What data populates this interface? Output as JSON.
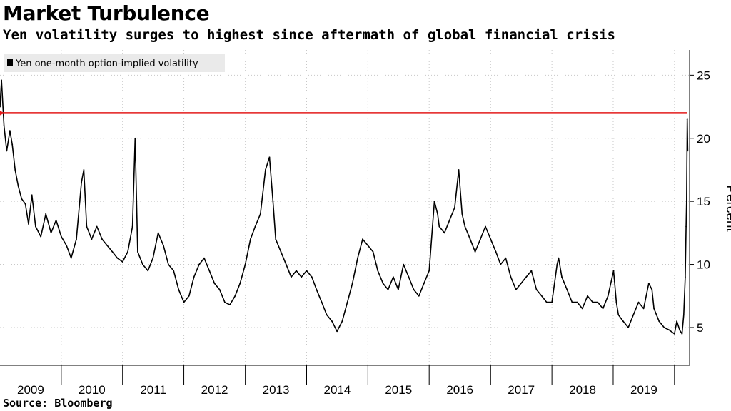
{
  "header": {
    "title": "Market Turbulence",
    "subtitle": "Yen volatility surges to highest since aftermath of global financial crisis"
  },
  "footer": {
    "source": "Source: Bloomberg"
  },
  "chart_data": {
    "type": "line",
    "title": "Market Turbulence",
    "subtitle": "Yen volatility surges to highest since aftermath of global financial crisis",
    "ylabel": "Percent",
    "xlabel": "",
    "ylim": [
      2,
      27
    ],
    "yticks": [
      5,
      10,
      15,
      20,
      25
    ],
    "x_categories": [
      "2009",
      "2010",
      "2011",
      "2012",
      "2013",
      "2014",
      "2015",
      "2016",
      "2017",
      "2018",
      "2019"
    ],
    "xlim": [
      "2009-01-01",
      "2020-03-31"
    ],
    "grid": true,
    "legend_position": "top-left",
    "series": [
      {
        "name": "Yen one-month option-implied volatility",
        "color": "#000000",
        "points": [
          [
            "2009-01-01",
            22.5
          ],
          [
            "2009-01-10",
            24.6
          ],
          [
            "2009-01-25",
            21.0
          ],
          [
            "2009-02-10",
            19.0
          ],
          [
            "2009-03-01",
            20.6
          ],
          [
            "2009-03-15",
            19.5
          ],
          [
            "2009-04-01",
            17.5
          ],
          [
            "2009-04-20",
            16.2
          ],
          [
            "2009-05-10",
            15.2
          ],
          [
            "2009-06-01",
            14.8
          ],
          [
            "2009-06-20",
            13.2
          ],
          [
            "2009-07-10",
            15.5
          ],
          [
            "2009-08-01",
            13.0
          ],
          [
            "2009-09-01",
            12.2
          ],
          [
            "2009-10-01",
            14.0
          ],
          [
            "2009-11-01",
            12.5
          ],
          [
            "2009-12-01",
            13.5
          ],
          [
            "2010-01-01",
            12.2
          ],
          [
            "2010-02-01",
            11.5
          ],
          [
            "2010-03-01",
            10.5
          ],
          [
            "2010-04-01",
            12.0
          ],
          [
            "2010-05-01",
            16.5
          ],
          [
            "2010-05-15",
            17.5
          ],
          [
            "2010-06-01",
            13.0
          ],
          [
            "2010-07-01",
            12.0
          ],
          [
            "2010-08-01",
            13.0
          ],
          [
            "2010-09-01",
            12.0
          ],
          [
            "2010-10-01",
            11.5
          ],
          [
            "2010-11-01",
            11.0
          ],
          [
            "2010-12-01",
            10.5
          ],
          [
            "2011-01-01",
            10.2
          ],
          [
            "2011-02-01",
            11.0
          ],
          [
            "2011-03-01",
            13.0
          ],
          [
            "2011-03-17",
            20.0
          ],
          [
            "2011-04-01",
            11.0
          ],
          [
            "2011-05-01",
            10.0
          ],
          [
            "2011-06-01",
            9.5
          ],
          [
            "2011-07-01",
            10.5
          ],
          [
            "2011-08-01",
            12.5
          ],
          [
            "2011-09-01",
            11.5
          ],
          [
            "2011-10-01",
            10.0
          ],
          [
            "2011-11-01",
            9.5
          ],
          [
            "2011-12-01",
            8.0
          ],
          [
            "2012-01-01",
            7.0
          ],
          [
            "2012-02-01",
            7.5
          ],
          [
            "2012-03-01",
            9.0
          ],
          [
            "2012-04-01",
            10.0
          ],
          [
            "2012-05-01",
            10.5
          ],
          [
            "2012-06-01",
            9.5
          ],
          [
            "2012-07-01",
            8.5
          ],
          [
            "2012-08-01",
            8.0
          ],
          [
            "2012-09-01",
            7.0
          ],
          [
            "2012-10-01",
            6.8
          ],
          [
            "2012-11-01",
            7.5
          ],
          [
            "2012-12-01",
            8.5
          ],
          [
            "2013-01-01",
            10.0
          ],
          [
            "2013-02-01",
            12.0
          ],
          [
            "2013-03-01",
            13.0
          ],
          [
            "2013-04-01",
            14.0
          ],
          [
            "2013-05-01",
            17.5
          ],
          [
            "2013-05-25",
            18.5
          ],
          [
            "2013-06-15",
            15.0
          ],
          [
            "2013-07-01",
            12.0
          ],
          [
            "2013-08-01",
            11.0
          ],
          [
            "2013-09-01",
            10.0
          ],
          [
            "2013-10-01",
            9.0
          ],
          [
            "2013-11-01",
            9.5
          ],
          [
            "2013-12-01",
            9.0
          ],
          [
            "2014-01-01",
            9.5
          ],
          [
            "2014-02-01",
            9.0
          ],
          [
            "2014-03-01",
            8.0
          ],
          [
            "2014-04-01",
            7.0
          ],
          [
            "2014-05-01",
            6.0
          ],
          [
            "2014-06-01",
            5.5
          ],
          [
            "2014-07-01",
            4.7
          ],
          [
            "2014-08-01",
            5.5
          ],
          [
            "2014-09-01",
            7.0
          ],
          [
            "2014-10-01",
            8.5
          ],
          [
            "2014-11-01",
            10.5
          ],
          [
            "2014-12-01",
            12.0
          ],
          [
            "2015-01-01",
            11.5
          ],
          [
            "2015-02-01",
            11.0
          ],
          [
            "2015-03-01",
            9.5
          ],
          [
            "2015-04-01",
            8.5
          ],
          [
            "2015-05-01",
            8.0
          ],
          [
            "2015-06-01",
            9.0
          ],
          [
            "2015-07-01",
            8.0
          ],
          [
            "2015-08-01",
            10.0
          ],
          [
            "2015-09-01",
            9.0
          ],
          [
            "2015-10-01",
            8.0
          ],
          [
            "2015-11-01",
            7.5
          ],
          [
            "2015-12-01",
            8.5
          ],
          [
            "2016-01-01",
            9.5
          ],
          [
            "2016-02-01",
            15.0
          ],
          [
            "2016-02-20",
            14.0
          ],
          [
            "2016-03-01",
            13.0
          ],
          [
            "2016-04-01",
            12.5
          ],
          [
            "2016-05-01",
            13.5
          ],
          [
            "2016-06-01",
            14.5
          ],
          [
            "2016-06-25",
            17.5
          ],
          [
            "2016-07-15",
            14.0
          ],
          [
            "2016-08-01",
            13.0
          ],
          [
            "2016-09-01",
            12.0
          ],
          [
            "2016-10-01",
            11.0
          ],
          [
            "2016-11-01",
            12.0
          ],
          [
            "2016-12-01",
            13.0
          ],
          [
            "2017-01-01",
            12.0
          ],
          [
            "2017-02-01",
            11.0
          ],
          [
            "2017-03-01",
            10.0
          ],
          [
            "2017-04-01",
            10.5
          ],
          [
            "2017-05-01",
            9.0
          ],
          [
            "2017-06-01",
            8.0
          ],
          [
            "2017-07-01",
            8.5
          ],
          [
            "2017-08-01",
            9.0
          ],
          [
            "2017-09-01",
            9.5
          ],
          [
            "2017-10-01",
            8.0
          ],
          [
            "2017-11-01",
            7.5
          ],
          [
            "2017-12-01",
            7.0
          ],
          [
            "2018-01-01",
            7.0
          ],
          [
            "2018-02-01",
            10.0
          ],
          [
            "2018-02-10",
            10.5
          ],
          [
            "2018-03-01",
            9.0
          ],
          [
            "2018-04-01",
            8.0
          ],
          [
            "2018-05-01",
            7.0
          ],
          [
            "2018-06-01",
            7.0
          ],
          [
            "2018-07-01",
            6.5
          ],
          [
            "2018-08-01",
            7.5
          ],
          [
            "2018-09-01",
            7.0
          ],
          [
            "2018-10-01",
            7.0
          ],
          [
            "2018-11-01",
            6.5
          ],
          [
            "2018-12-01",
            7.5
          ],
          [
            "2019-01-03",
            9.5
          ],
          [
            "2019-01-20",
            7.0
          ],
          [
            "2019-02-01",
            6.0
          ],
          [
            "2019-03-01",
            5.5
          ],
          [
            "2019-04-01",
            5.0
          ],
          [
            "2019-05-01",
            6.0
          ],
          [
            "2019-06-01",
            7.0
          ],
          [
            "2019-07-01",
            6.5
          ],
          [
            "2019-08-01",
            8.5
          ],
          [
            "2019-08-20",
            8.0
          ],
          [
            "2019-09-01",
            6.5
          ],
          [
            "2019-10-01",
            5.5
          ],
          [
            "2019-11-01",
            5.0
          ],
          [
            "2019-12-01",
            4.8
          ],
          [
            "2020-01-01",
            4.5
          ],
          [
            "2020-01-15",
            5.5
          ],
          [
            "2020-02-01",
            4.8
          ],
          [
            "2020-02-15",
            4.5
          ],
          [
            "2020-02-25",
            6.0
          ],
          [
            "2020-03-05",
            9.0
          ],
          [
            "2020-03-10",
            13.0
          ],
          [
            "2020-03-13",
            15.0
          ],
          [
            "2020-03-17",
            21.5
          ],
          [
            "2020-03-20",
            19.0
          ]
        ]
      }
    ],
    "annotations": [
      {
        "type": "arrow",
        "color": "#e31c1c",
        "from": [
          "2020-03-17",
          22.0
        ],
        "to": [
          "2009-01-15",
          22.0
        ]
      }
    ]
  }
}
